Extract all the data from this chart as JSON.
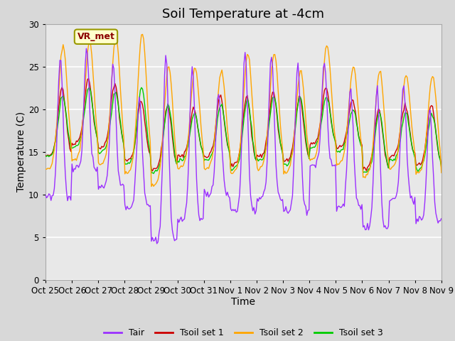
{
  "title": "Soil Temperature at -4cm",
  "xlabel": "Time",
  "ylabel": "Temperature (C)",
  "ylim": [
    0,
    30
  ],
  "yticks": [
    0,
    5,
    10,
    15,
    20,
    25,
    30
  ],
  "tick_labels": [
    "Oct 25",
    "Oct 26",
    "Oct 27",
    "Oct 28",
    "Oct 29",
    "Oct 30",
    "Oct 31",
    "Nov 1",
    "Nov 2",
    "Nov 3",
    "Nov 4",
    "Nov 5",
    "Nov 6",
    "Nov 7",
    "Nov 8",
    "Nov 9"
  ],
  "colors": {
    "Tair": "#9B30FF",
    "Tsoil set 1": "#CC0000",
    "Tsoil set 2": "#FFA500",
    "Tsoil set 3": "#00CC00"
  },
  "annotation_text": "VR_met",
  "bg_color": "#E8E8E8",
  "title_fontsize": 13,
  "axis_fontsize": 10,
  "legend_fontsize": 9,
  "tick_fontsize": 8.5
}
